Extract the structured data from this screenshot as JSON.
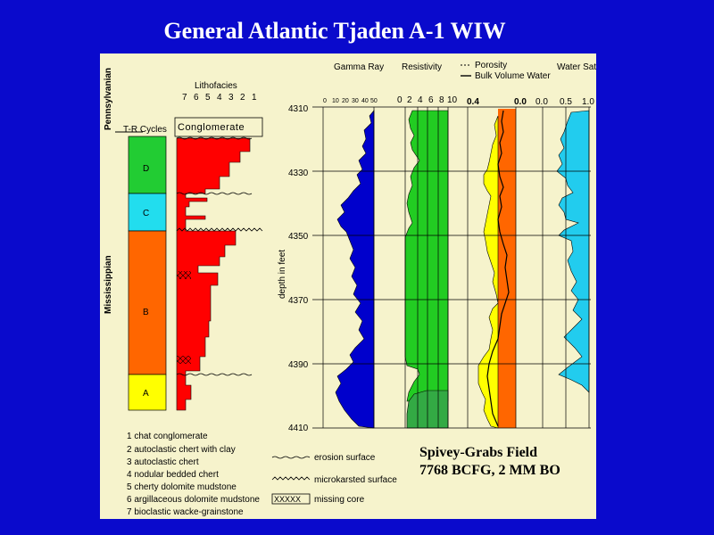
{
  "title": "General Atlantic Tjaden A-1 WIW",
  "periods": {
    "upper": "Pennsylvanian",
    "lower": "Mississippian"
  },
  "cycles": {
    "label": "T-R Cycles",
    "items": [
      {
        "name": "D",
        "color": "#22cc33"
      },
      {
        "name": "C",
        "color": "#22ddee"
      },
      {
        "name": "B",
        "color": "#ff6600"
      },
      {
        "name": "A",
        "color": "#ffff00"
      }
    ]
  },
  "lithofacies": {
    "label": "Lithofacies",
    "scale": [
      "7",
      "6",
      "5",
      "4",
      "3",
      "2",
      "1"
    ],
    "top_unit": "Conglomerate",
    "color": "#ff0000"
  },
  "depth": {
    "label": "depth in feet",
    "ticks": [
      "4310",
      "4330",
      "4350",
      "4370",
      "4390",
      "4410"
    ]
  },
  "tracks": {
    "gamma": {
      "label": "Gamma Ray",
      "scale": [
        "0",
        "10",
        "20",
        "30",
        "40",
        "50"
      ],
      "color": "#0000cc"
    },
    "resistivity": {
      "label": "Resistivity",
      "scale": [
        "0",
        "2",
        "4",
        "6",
        "8",
        "10"
      ],
      "color": "#22cc22"
    },
    "porosity": {
      "legend_1": "Porosity",
      "legend_2": "Bulk Volume Water",
      "scale_left": "0.4",
      "scale_right": "0.0"
    },
    "saturation": {
      "label": "Water Saturation",
      "scale": [
        "0.0",
        "0.5",
        "1.0"
      ],
      "color": "#22ccee"
    }
  },
  "legend": {
    "facies": [
      "1  chat conglomerate",
      "2  autoclastic chert with clay",
      "3  autoclastic chert",
      "4  nodular bedded chert",
      "5  cherty dolomite mudstone",
      "6  argillaceous dolomite mudstone",
      "7  bioclastic wacke-grainstone"
    ],
    "symbols": [
      "erosion surface",
      "microkarsted surface",
      "missing core"
    ],
    "missing_pattern": "XXXXX"
  },
  "field": {
    "name": "Spivey-Grabs Field",
    "production": "7768 BCFG, 2 MM BO"
  }
}
